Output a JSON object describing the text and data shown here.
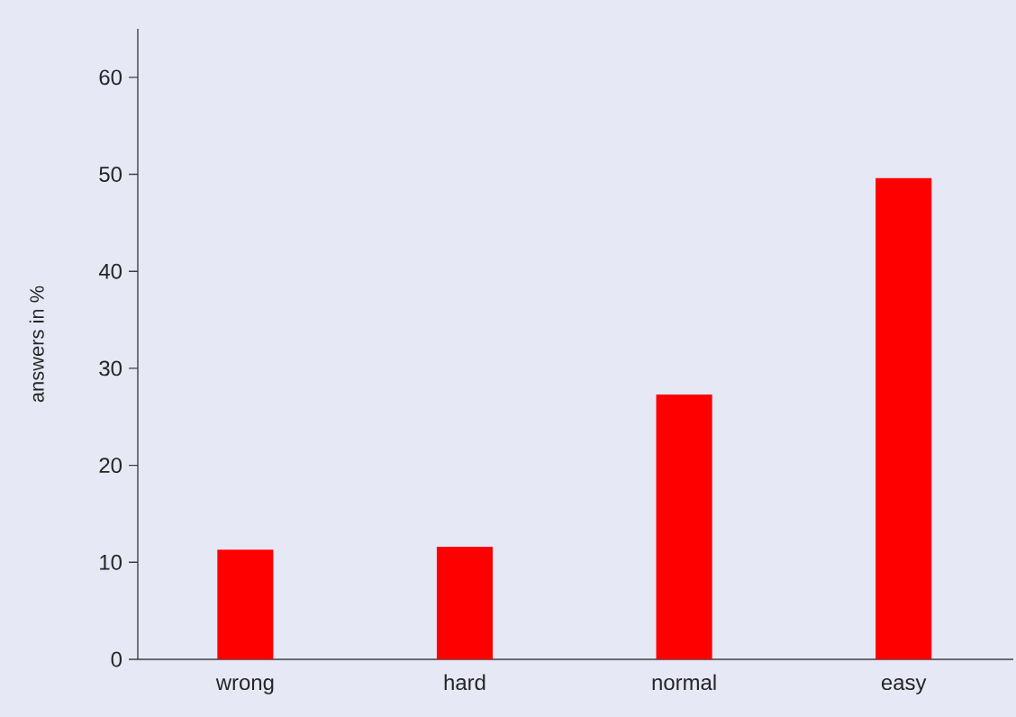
{
  "chart_data": {
    "type": "bar",
    "ylabel": "answers in %",
    "categories": [
      "wrong",
      "hard",
      "normal",
      "easy"
    ],
    "values": [
      11.3,
      11.6,
      27.3,
      49.6
    ],
    "color": "#ff0000",
    "ylim": [
      0,
      65
    ],
    "yticks": [
      0,
      10,
      20,
      30,
      40,
      50,
      60
    ],
    "grid": false
  }
}
